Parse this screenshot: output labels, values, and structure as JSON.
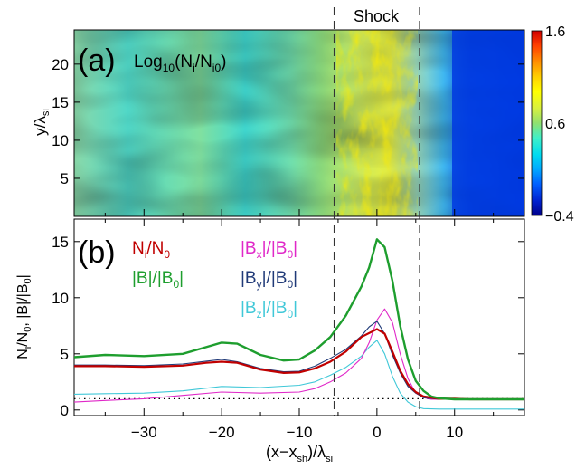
{
  "figure": {
    "shock_label": "Shock",
    "panel_a_tag": "(a)",
    "panel_b_tag": "(b)"
  },
  "chart_data": [
    {
      "type": "heatmap",
      "panel": "a",
      "title": "Log₁₀(Nᵢ/Nᵢ₀)",
      "title_parts": {
        "pre": "Log",
        "sub1": "10",
        "mid": "(N",
        "sub2": "i",
        "mid2": "/N",
        "sub3": "i0",
        "post": ")"
      },
      "ylabel_parts": {
        "pre": "y/λ",
        "sub": "si"
      },
      "y_ticks": [
        5,
        10,
        15,
        20
      ],
      "ylim": [
        0,
        24.5
      ],
      "xlim": [
        -39,
        19
      ],
      "colorbar": {
        "min": -0.4,
        "max": 1.6,
        "tick_values": [
          -0.4,
          0.6,
          1.6
        ],
        "tick_labels": [
          "−0.4",
          "0.6",
          "1.6"
        ],
        "colors": [
          "#00008a",
          "#0022d0",
          "#0060ff",
          "#00a8ff",
          "#00dcf0",
          "#40f0c8",
          "#90e070",
          "#d8f040",
          "#ffff00",
          "#ffd000",
          "#ff9000",
          "#ff4000",
          "#d00000"
        ]
      }
    },
    {
      "type": "line",
      "panel": "b",
      "xlabel_parts": {
        "pre": "(x−x",
        "sub": "sh",
        "post": ")/λ",
        "sub2": "si"
      },
      "ylabel_parts": {
        "a": "N",
        "a_sub": "i",
        "b": "/N",
        "b_sub": "0",
        "c": ",  |B|/|B",
        "c_sub": "0",
        "d": "|"
      },
      "xlim": [
        -39,
        19
      ],
      "ylim": [
        -0.5,
        17
      ],
      "x_ticks": [
        -30,
        -20,
        -10,
        0,
        10
      ],
      "x_tick_labels": [
        "−30",
        "−20",
        "−10",
        "0",
        "10"
      ],
      "y_ticks": [
        0,
        5,
        10,
        15
      ],
      "y_tick_labels": [
        "0",
        "5",
        "10",
        "15"
      ],
      "shock_bounds": [
        -5.5,
        5.5
      ],
      "reference_line_y": 1,
      "legend": [
        {
          "series": 0,
          "label": "Ni/N0",
          "parts": [
            "N",
            "i",
            "/N",
            "0",
            ""
          ]
        },
        {
          "series": 1,
          "label": "|B|/|B0|",
          "parts": [
            "|B|/|B",
            "0",
            "|",
            "",
            ""
          ]
        },
        {
          "series": 2,
          "label": "|Bx|/|B0|",
          "parts": [
            "|B",
            "x",
            "|/|B",
            "0",
            "|"
          ]
        },
        {
          "series": 3,
          "label": "|By|/|B0|",
          "parts": [
            "|B",
            "y",
            "|/|B",
            "0",
            "|"
          ]
        },
        {
          "series": 4,
          "label": "|Bz|/|B0|",
          "parts": [
            "|B",
            "z",
            "|/|B",
            "0",
            "|"
          ]
        }
      ],
      "series": [
        {
          "color": "#c00000",
          "x": [
            -39,
            -35,
            -30,
            -25,
            -22,
            -20,
            -18,
            -15,
            -12,
            -10,
            -8,
            -6,
            -4,
            -2,
            0,
            1,
            2,
            3,
            4,
            5,
            6,
            8,
            10,
            12,
            15,
            19
          ],
          "values": [
            3.9,
            3.9,
            3.85,
            3.95,
            4.2,
            4.3,
            4.2,
            3.6,
            3.3,
            3.35,
            3.7,
            4.3,
            5.2,
            6.5,
            7.2,
            6.8,
            5.2,
            3.5,
            2.3,
            1.6,
            1.2,
            1.0,
            1.0,
            0.95,
            0.95,
            0.95
          ]
        },
        {
          "color": "#1e9e2e",
          "x": [
            -39,
            -35,
            -30,
            -25,
            -22,
            -20,
            -18,
            -15,
            -12,
            -10,
            -8,
            -6,
            -4,
            -2,
            -1,
            0,
            1,
            2,
            3,
            4,
            5,
            6,
            7,
            8,
            10,
            12,
            15,
            19
          ],
          "values": [
            4.7,
            4.9,
            4.8,
            5.0,
            5.6,
            6.0,
            5.9,
            4.9,
            4.4,
            4.5,
            5.3,
            6.5,
            8.4,
            11.0,
            12.7,
            15.2,
            14.5,
            11.5,
            7.5,
            4.5,
            2.6,
            1.7,
            1.2,
            1.05,
            0.95,
            0.95,
            0.95,
            0.95
          ]
        },
        {
          "color": "#e028c8",
          "x": [
            -39,
            -35,
            -30,
            -25,
            -20,
            -15,
            -10,
            -8,
            -6,
            -4,
            -2,
            -1,
            0,
            1,
            2,
            3,
            4,
            5,
            6,
            7,
            8,
            10,
            12,
            15,
            19
          ],
          "values": [
            0.7,
            0.85,
            1.0,
            1.3,
            1.6,
            1.5,
            1.6,
            1.9,
            2.5,
            3.3,
            4.6,
            6.0,
            8.0,
            9.0,
            7.8,
            5.0,
            2.8,
            1.5,
            1.1,
            0.95,
            0.95,
            0.95,
            0.95,
            0.95,
            0.95
          ]
        },
        {
          "color": "#203a78",
          "x": [
            -39,
            -35,
            -30,
            -25,
            -22,
            -20,
            -18,
            -15,
            -12,
            -10,
            -8,
            -6,
            -4,
            -2,
            -1,
            0,
            1,
            2,
            3,
            4,
            5,
            6,
            8,
            10,
            12,
            15,
            19
          ],
          "values": [
            4.0,
            4.0,
            3.95,
            4.1,
            4.35,
            4.5,
            4.3,
            3.7,
            3.4,
            3.45,
            3.9,
            4.6,
            5.4,
            6.6,
            7.4,
            7.9,
            6.8,
            4.9,
            3.3,
            2.1,
            1.5,
            1.1,
            0.95,
            0.95,
            0.95,
            0.95,
            0.95
          ]
        },
        {
          "color": "#40c8d8",
          "x": [
            -39,
            -35,
            -30,
            -25,
            -20,
            -15,
            -10,
            -8,
            -6,
            -4,
            -2,
            -1,
            0,
            1,
            2,
            3,
            4,
            5,
            6,
            8,
            10,
            12,
            15,
            19
          ],
          "values": [
            1.4,
            1.45,
            1.5,
            1.7,
            2.1,
            2.0,
            2.2,
            2.5,
            3.1,
            3.8,
            4.8,
            5.6,
            6.2,
            5.0,
            3.0,
            1.5,
            0.7,
            0.3,
            0.12,
            0.08,
            0.08,
            0.08,
            0.08,
            0.08
          ]
        }
      ]
    }
  ]
}
